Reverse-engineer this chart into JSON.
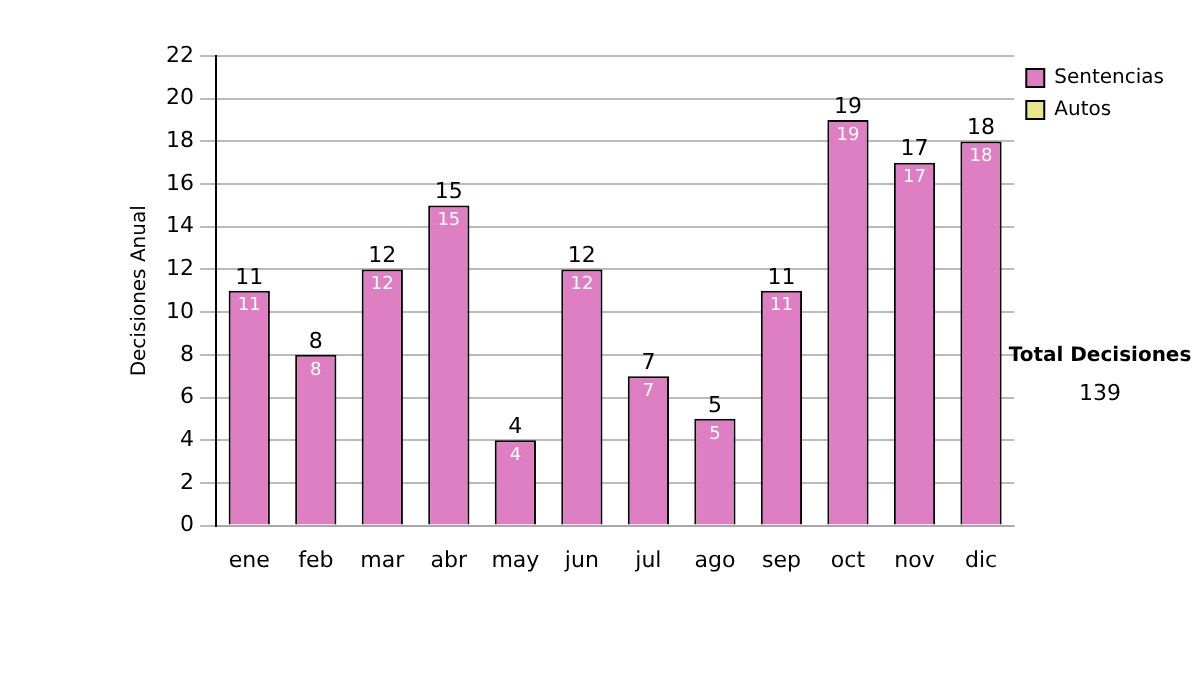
{
  "chart_data": {
    "type": "bar",
    "ylabel": "Decisiones Anual",
    "categories": [
      "ene",
      "feb",
      "mar",
      "abr",
      "may",
      "jun",
      "jul",
      "ago",
      "sep",
      "oct",
      "nov",
      "dic"
    ],
    "series": [
      {
        "name": "Sentencias",
        "color": "#df7fc3",
        "values": [
          11,
          8,
          12,
          15,
          4,
          12,
          7,
          5,
          11,
          19,
          17,
          18
        ],
        "value_labels": [
          "11",
          "8",
          "12",
          "15",
          "4",
          "12",
          "7",
          "5",
          "11",
          "19",
          "17",
          "18"
        ]
      },
      {
        "name": "Autos",
        "color": "#e6e68a",
        "values": [
          0,
          0,
          0,
          0,
          0,
          0,
          0,
          0,
          0,
          0,
          0,
          0
        ],
        "value_labels": [
          null,
          null,
          null,
          null,
          null,
          null,
          null,
          null,
          null,
          null,
          null,
          null
        ]
      }
    ],
    "stacked": true,
    "totals": [
      "11",
      "8",
      "12",
      "15",
      "4",
      "12",
      "7",
      "5",
      "11",
      "19",
      "17",
      "18"
    ],
    "ylim": [
      0,
      22
    ],
    "yticks": [
      0,
      2,
      4,
      6,
      8,
      10,
      12,
      14,
      16,
      18,
      20,
      22
    ],
    "grid": "y",
    "legend": "right",
    "annotations": [
      "Total Decisiones",
      "139"
    ]
  }
}
